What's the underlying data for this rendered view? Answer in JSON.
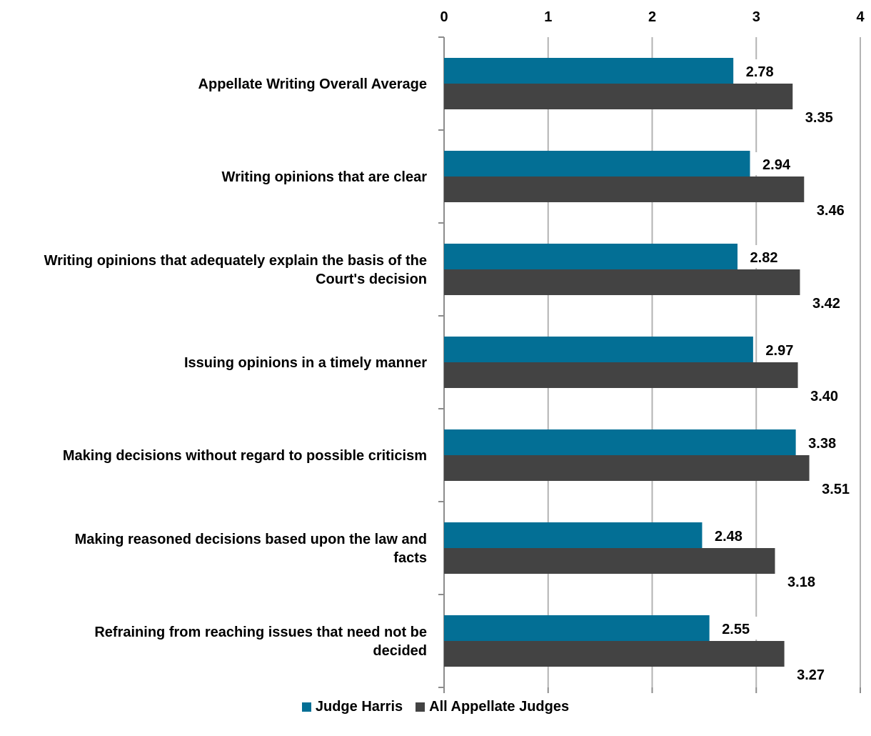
{
  "chart_data": {
    "type": "bar",
    "orientation": "horizontal",
    "title": "",
    "xlim": [
      0,
      4
    ],
    "x_ticks": [
      "0",
      "1",
      "2",
      "3",
      "4"
    ],
    "x_axis_position": "top",
    "grid": true,
    "legend_position": "bottom",
    "categories": [
      [
        "Appellate Writing Overall Average"
      ],
      [
        "Writing opinions that are clear"
      ],
      [
        "Writing opinions that adequately explain the basis of the",
        "Court's decision"
      ],
      [
        "Issuing opinions in a timely manner"
      ],
      [
        "Making decisions without regard to possible criticism"
      ],
      [
        "Making reasoned decisions based upon the law and",
        "facts"
      ],
      [
        "Refraining from reaching issues that need not be",
        "decided"
      ]
    ],
    "series": [
      {
        "name": "Judge Harris",
        "color": "#036f95",
        "values": [
          2.78,
          2.94,
          2.82,
          2.97,
          3.38,
          2.48,
          2.55
        ],
        "labels": [
          "2.78",
          "2.94",
          "2.82",
          "2.97",
          "3.38",
          "2.48",
          "2.55"
        ]
      },
      {
        "name": "All Appellate Judges",
        "color": "#434343",
        "values": [
          3.35,
          3.46,
          3.42,
          3.4,
          3.51,
          3.18,
          3.27
        ],
        "labels": [
          "3.35",
          "3.46",
          "3.42",
          "3.40",
          "3.51",
          "3.18",
          "3.27"
        ]
      }
    ]
  },
  "colors": {
    "grid": "#b3b3b3",
    "axis": "#8c8c8c",
    "label_box": "#ffffff"
  }
}
